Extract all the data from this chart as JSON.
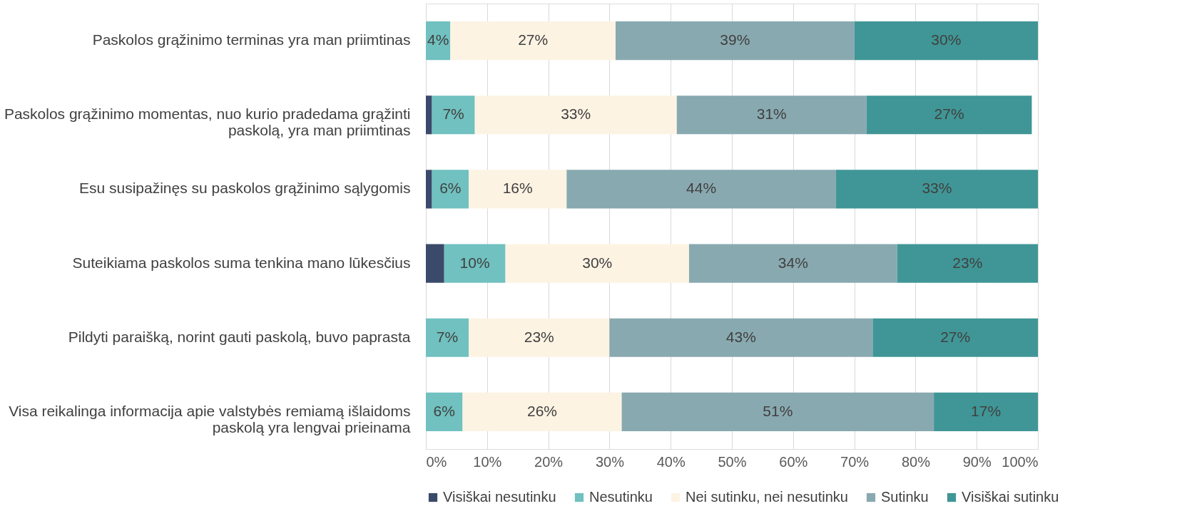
{
  "chart_data": {
    "type": "bar",
    "orientation": "horizontal",
    "stacked": true,
    "categories": [
      "Paskolos grąžinimo terminas yra man priimtinas",
      "Paskolos grąžinimo momentas, nuo kurio pradedama grąžinti paskolą, yra man priimtinas",
      "Esu susipažinęs su paskolos grąžinimo sąlygomis",
      "Suteikiama paskolos suma tenkina mano lūkesčius",
      "Pildyti paraišką, norint gauti paskolą, buvo paprasta",
      "Visa reikalinga informacija apie valstybės remiamą išlaidoms paskolą yra lengvai prieinama"
    ],
    "series": [
      {
        "name": "Visiškai nesutinku",
        "color": "#3b4a6b",
        "values": [
          0,
          1,
          1,
          3,
          0,
          0
        ],
        "value_labels": [
          null,
          null,
          null,
          null,
          null,
          null
        ]
      },
      {
        "name": "Nesutinku",
        "color": "#70c1c0",
        "values": [
          4,
          7,
          6,
          10,
          7,
          6
        ],
        "value_labels": [
          "4%",
          "7%",
          "6%",
          "10%",
          "7%",
          "6%"
        ]
      },
      {
        "name": "Nei sutinku, nei nesutinku",
        "color": "#fdf3e3",
        "values": [
          27,
          33,
          16,
          30,
          23,
          26
        ],
        "value_labels": [
          "27%",
          "33%",
          "16%",
          "30%",
          "23%",
          "26%"
        ]
      },
      {
        "name": "Sutinku",
        "color": "#89a9b0",
        "values": [
          39,
          31,
          44,
          34,
          43,
          51
        ],
        "value_labels": [
          "39%",
          "31%",
          "44%",
          "34%",
          "43%",
          "51%"
        ]
      },
      {
        "name": "Visiškai sutinku",
        "color": "#409696",
        "values": [
          30,
          27,
          33,
          23,
          27,
          17
        ],
        "value_labels": [
          "30%",
          "27%",
          "33%",
          "23%",
          "27%",
          "17%"
        ]
      }
    ],
    "xlim": [
      0,
      100
    ],
    "xticks": [
      {
        "value": 0,
        "label": "0%"
      },
      {
        "value": 10,
        "label": "10%"
      },
      {
        "value": 20,
        "label": "20%"
      },
      {
        "value": 30,
        "label": "30%"
      },
      {
        "value": 40,
        "label": "40%"
      },
      {
        "value": 50,
        "label": "50%"
      },
      {
        "value": 60,
        "label": "60%"
      },
      {
        "value": 70,
        "label": "70%"
      },
      {
        "value": 80,
        "label": "80%"
      },
      {
        "value": 90,
        "label": "90%"
      },
      {
        "value": 100,
        "label": "100%"
      }
    ],
    "grid": "x",
    "legend": "bottom"
  }
}
